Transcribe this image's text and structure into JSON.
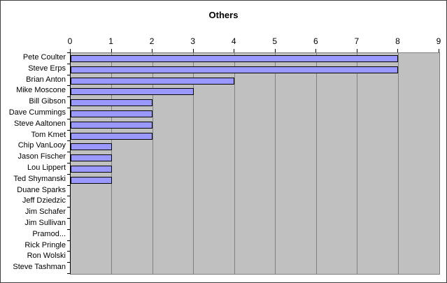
{
  "chart_data": {
    "type": "bar",
    "orientation": "horizontal",
    "title": "Others",
    "categories": [
      "Pete Coulter",
      "Steve Erps",
      "Brian Anton",
      "Mike Moscone",
      "Bill Gibson",
      "Dave Cummings",
      "Steve Aaltonen",
      "Tom Kmet",
      "Chip VanLooy",
      "Jason Fischer",
      "Lou Lippert",
      "Ted Shymanski",
      "Duane Sparks",
      "Jeff Dziedzic",
      "Jim Schafer",
      "Jim Sullivan",
      "Pramod...",
      "Rick Pringle",
      "Ron Wolski",
      "Steve Tashman"
    ],
    "values": [
      8,
      8,
      4,
      3,
      2,
      2,
      2,
      2,
      1,
      1,
      1,
      1,
      0,
      0,
      0,
      0,
      0,
      0,
      0,
      0
    ],
    "xlabel": "",
    "ylabel": "",
    "xlim": [
      0,
      9
    ],
    "x_ticks": [
      0,
      1,
      2,
      3,
      4,
      5,
      6,
      7,
      8,
      9
    ],
    "grid": true,
    "legend": false,
    "colors": {
      "bar_fill": "#9999ff",
      "bar_border": "#000000",
      "plot_background": "#c0c0c0",
      "gridline": "#808080",
      "axis": "#000000",
      "chart_background": "#ffffff",
      "chart_border": "#3f3f3f"
    }
  }
}
